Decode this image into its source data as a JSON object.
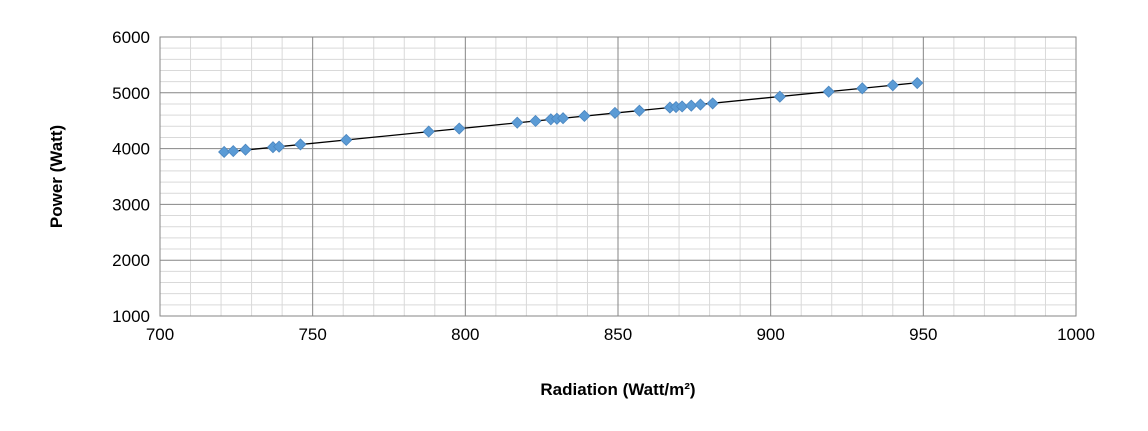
{
  "chart_data": {
    "type": "scatter",
    "title": "",
    "xlabel": "Radiation (Watt/m²)",
    "ylabel": "Power (Watt)",
    "xlim": [
      700,
      1000
    ],
    "ylim": [
      1000,
      6000
    ],
    "x_major_ticks": [
      700,
      750,
      800,
      850,
      900,
      950,
      1000
    ],
    "y_major_ticks": [
      1000,
      2000,
      3000,
      4000,
      5000,
      6000
    ],
    "grid": "major and minor",
    "legend": "none",
    "marker": "diamond",
    "marker_color": "#5b9bd5",
    "trendline": {
      "type": "linear",
      "color": "#000000",
      "x": [
        720,
        948
      ],
      "y": [
        3930,
        5180
      ]
    },
    "series": [
      {
        "points": [
          {
            "x": 721,
            "y": 3940
          },
          {
            "x": 724,
            "y": 3955
          },
          {
            "x": 728,
            "y": 3980
          },
          {
            "x": 737,
            "y": 4025
          },
          {
            "x": 739,
            "y": 4035
          },
          {
            "x": 746,
            "y": 4075
          },
          {
            "x": 761,
            "y": 4155
          },
          {
            "x": 788,
            "y": 4305
          },
          {
            "x": 798,
            "y": 4360
          },
          {
            "x": 817,
            "y": 4465
          },
          {
            "x": 823,
            "y": 4495
          },
          {
            "x": 828,
            "y": 4525
          },
          {
            "x": 830,
            "y": 4535
          },
          {
            "x": 832,
            "y": 4545
          },
          {
            "x": 839,
            "y": 4585
          },
          {
            "x": 849,
            "y": 4640
          },
          {
            "x": 857,
            "y": 4680
          },
          {
            "x": 867,
            "y": 4735
          },
          {
            "x": 869,
            "y": 4745
          },
          {
            "x": 871,
            "y": 4755
          },
          {
            "x": 874,
            "y": 4770
          },
          {
            "x": 877,
            "y": 4790
          },
          {
            "x": 881,
            "y": 4810
          },
          {
            "x": 903,
            "y": 4930
          },
          {
            "x": 919,
            "y": 5020
          },
          {
            "x": 930,
            "y": 5080
          },
          {
            "x": 940,
            "y": 5135
          },
          {
            "x": 948,
            "y": 5175
          }
        ]
      }
    ]
  }
}
